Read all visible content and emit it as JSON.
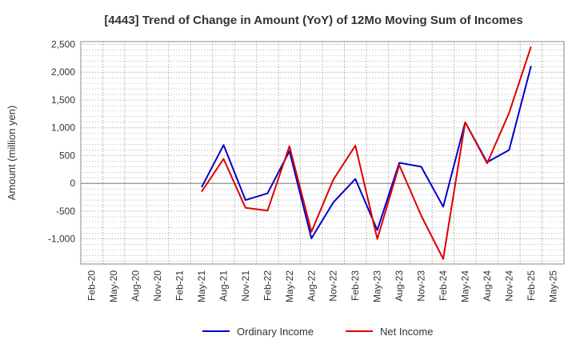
{
  "chart_data": {
    "type": "line",
    "title": "[4443]  Trend of Change in Amount (YoY) of 12Mo Moving Sum of Incomes",
    "xlabel": "",
    "ylabel": "Amount (million yen)",
    "ylim": [
      -1450,
      2550
    ],
    "yticks": [
      -1000,
      -500,
      0,
      500,
      1000,
      1500,
      2000,
      2500
    ],
    "ytick_labels": [
      "-1,000",
      "-500",
      "0",
      "500",
      "1,000",
      "1,500",
      "2,000",
      "2,500"
    ],
    "categories": [
      "Feb-20",
      "May-20",
      "Aug-20",
      "Nov-20",
      "Feb-21",
      "May-21",
      "Aug-21",
      "Nov-21",
      "Feb-22",
      "May-22",
      "Aug-22",
      "Nov-22",
      "Feb-23",
      "May-23",
      "Aug-23",
      "Nov-23",
      "Feb-24",
      "May-24",
      "Aug-24",
      "Nov-24",
      "Feb-25",
      "May-25"
    ],
    "grid": true,
    "legend_position": "bottom",
    "series": [
      {
        "name": "Ordinary Income",
        "color": "#0000cc",
        "values": [
          null,
          null,
          null,
          null,
          null,
          -70,
          690,
          -300,
          -180,
          580,
          -990,
          -340,
          80,
          -840,
          370,
          300,
          -420,
          1100,
          380,
          600,
          2110,
          null
        ]
      },
      {
        "name": "Net Income",
        "color": "#dd0000",
        "values": [
          null,
          null,
          null,
          null,
          null,
          -150,
          440,
          -440,
          -490,
          670,
          -870,
          70,
          680,
          -1000,
          330,
          -580,
          -1360,
          1100,
          360,
          1270,
          2460,
          null
        ]
      }
    ]
  }
}
